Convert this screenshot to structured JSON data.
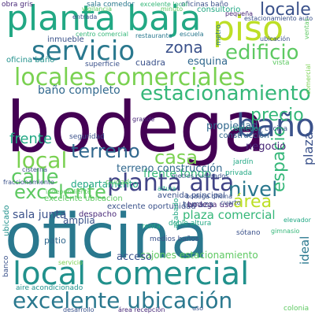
{
  "word_cloud": {
    "palette": [
      "#440154",
      "#3b528b",
      "#21918c",
      "#27ad81",
      "#5ec962",
      "#addc30",
      "#fde725",
      "#31688e",
      "#35b779",
      "#90d743"
    ],
    "words": [
      {
        "text": "bodega",
        "color": "#440154"
      },
      {
        "text": "oficina",
        "color": "#2a788e"
      },
      {
        "text": "local comercial",
        "color": "#21918c"
      },
      {
        "text": "planta baja",
        "color": "#22a884"
      },
      {
        "text": "piso",
        "color": "#bddf26"
      },
      {
        "text": "locales comerciales",
        "color": "#7ad151"
      },
      {
        "text": "servicio",
        "color": "#2a788e"
      },
      {
        "text": "excelente ubicación",
        "color": "#2a788e"
      },
      {
        "text": "baño",
        "color": "#3b528b"
      },
      {
        "text": "planta alta",
        "color": "#414487"
      },
      {
        "text": "estacionamiento",
        "color": "#35b779"
      },
      {
        "text": "edificio",
        "color": "#5ec962"
      },
      {
        "text": "zona",
        "color": "#3b528b"
      },
      {
        "text": "locale",
        "color": "#3b528b"
      },
      {
        "text": "local",
        "color": "#7ad151"
      },
      {
        "text": "terreno",
        "color": "#31688e"
      },
      {
        "text": "calle",
        "color": "#5ec962"
      },
      {
        "text": "precio",
        "color": "#35b779"
      },
      {
        "text": "casa",
        "color": "#7ad151"
      },
      {
        "text": "nivel",
        "color": "#2a788e"
      },
      {
        "text": "área",
        "color": "#bddf26"
      },
      {
        "text": "espacio",
        "color": "#35b779"
      },
      {
        "text": "excelente",
        "color": "#5ec962"
      },
      {
        "text": "frente",
        "color": "#22a884"
      },
      {
        "text": "plaza",
        "color": "#3b528b"
      },
      {
        "text": "baño completo",
        "color": "#31688e"
      },
      {
        "text": "propiedad",
        "color": "#31688e"
      },
      {
        "text": "frente fondo",
        "color": "#35b779"
      },
      {
        "text": "terreno construcción",
        "color": "#31688e"
      },
      {
        "text": "departamento",
        "color": "#22a884"
      },
      {
        "text": "plaza comercial",
        "color": "#35b779"
      },
      {
        "text": "sala junta",
        "color": "#3b528b"
      },
      {
        "text": "negocio",
        "color": "#482878"
      },
      {
        "text": "ideal",
        "color": "#2a788e"
      },
      {
        "text": "cajones estacionamiento",
        "color": "#5ec962"
      },
      {
        "text": "avenida principal",
        "color": "#3b528b"
      },
      {
        "text": "esquina",
        "color": "#31688e"
      },
      {
        "text": "cuadra",
        "color": "#3b528b"
      },
      {
        "text": "terraza",
        "color": "#3b528b"
      },
      {
        "text": "servicio",
        "color": "#7ad151"
      },
      {
        "text": "ubicado",
        "color": "#21918c"
      },
      {
        "text": "amplia",
        "color": "#3b528b"
      },
      {
        "text": "despacho",
        "color": "#482878"
      },
      {
        "text": "acceso",
        "color": "#3b528b"
      },
      {
        "text": "excelente oportunidad",
        "color": "#3b528b"
      },
      {
        "text": "medios baños",
        "color": "#3b528b"
      },
      {
        "text": "excelente ubicacion",
        "color": "#5ec962"
      },
      {
        "text": "construcción",
        "color": "#31688e"
      },
      {
        "text": "bodega uso",
        "color": "#482878"
      },
      {
        "text": "centro comercial",
        "color": "#35b779"
      },
      {
        "text": "restaurante",
        "color": "#2a788e"
      },
      {
        "text": "escuela",
        "color": "#2a788e"
      },
      {
        "text": "sala comedor",
        "color": "#2a788e"
      },
      {
        "text": "oficinas baño",
        "color": "#3b528b"
      },
      {
        "text": "excelente local",
        "color": "#35b779"
      },
      {
        "text": "estacionamiento auto",
        "color": "#3b528b"
      },
      {
        "text": "consultorio",
        "color": "#22a884"
      },
      {
        "text": "inmueble",
        "color": "#3b528b"
      },
      {
        "text": "ubicación",
        "color": "#3b528b"
      },
      {
        "text": "superficie",
        "color": "#3b528b"
      },
      {
        "text": "oficina baño",
        "color": "#21918c"
      },
      {
        "text": "metro",
        "color": "#2a788e"
      },
      {
        "text": "obra gris",
        "color": "#482878"
      },
      {
        "text": "seguridad",
        "color": "#3b528b"
      },
      {
        "text": "cisterna",
        "color": "#3b528b"
      },
      {
        "text": "fraccionamiento",
        "color": "#3b528b"
      },
      {
        "text": "cocina",
        "color": "#3b528b"
      },
      {
        "text": "comercial",
        "color": "#7ad151"
      },
      {
        "text": "pequeña",
        "color": "#482878"
      },
      {
        "text": "minuto",
        "color": "#5ec962"
      },
      {
        "text": "vigilancia",
        "color": "#5ec962"
      },
      {
        "text": "entrada",
        "color": "#3b528b"
      },
      {
        "text": "vista",
        "color": "#5ec962"
      },
      {
        "text": "ciudad",
        "color": "#5ec962"
      },
      {
        "text": "jardín",
        "color": "#22a884"
      },
      {
        "text": "privada",
        "color": "#22a884"
      },
      {
        "text": "colonia",
        "color": "#5ec962"
      },
      {
        "text": "ventas",
        "color": "#5ec962"
      },
      {
        "text": "renta",
        "color": "#22a884"
      },
      {
        "text": "metros cuadrados",
        "color": "#3b528b"
      },
      {
        "text": "acabado",
        "color": "#22a884"
      },
      {
        "text": "sótano",
        "color": "#3b528b"
      },
      {
        "text": "elevador",
        "color": "#22a884"
      },
      {
        "text": "altura",
        "color": "#22a884"
      },
      {
        "text": "patio",
        "color": "#31688e"
      },
      {
        "text": "banco",
        "color": "#3b528b"
      },
      {
        "text": "aire acondicionado",
        "color": "#21918c"
      },
      {
        "text": "comedor",
        "color": "#22a884"
      },
      {
        "text": "área recepción",
        "color": "#482878"
      },
      {
        "text": "uso",
        "color": "#3b528b"
      },
      {
        "text": "gimnasio",
        "color": "#35b779"
      },
      {
        "text": "grande",
        "color": "#482878"
      },
      {
        "text": "desarrollo",
        "color": "#3b528b"
      },
      {
        "text": "cuarto",
        "color": "#3b528b"
      },
      {
        "text": "bodega oficina",
        "color": "#3b528b"
      },
      {
        "text": "independiente",
        "color": "#5ec962"
      },
      {
        "text": "doble altura",
        "color": "#22a884"
      }
    ]
  }
}
